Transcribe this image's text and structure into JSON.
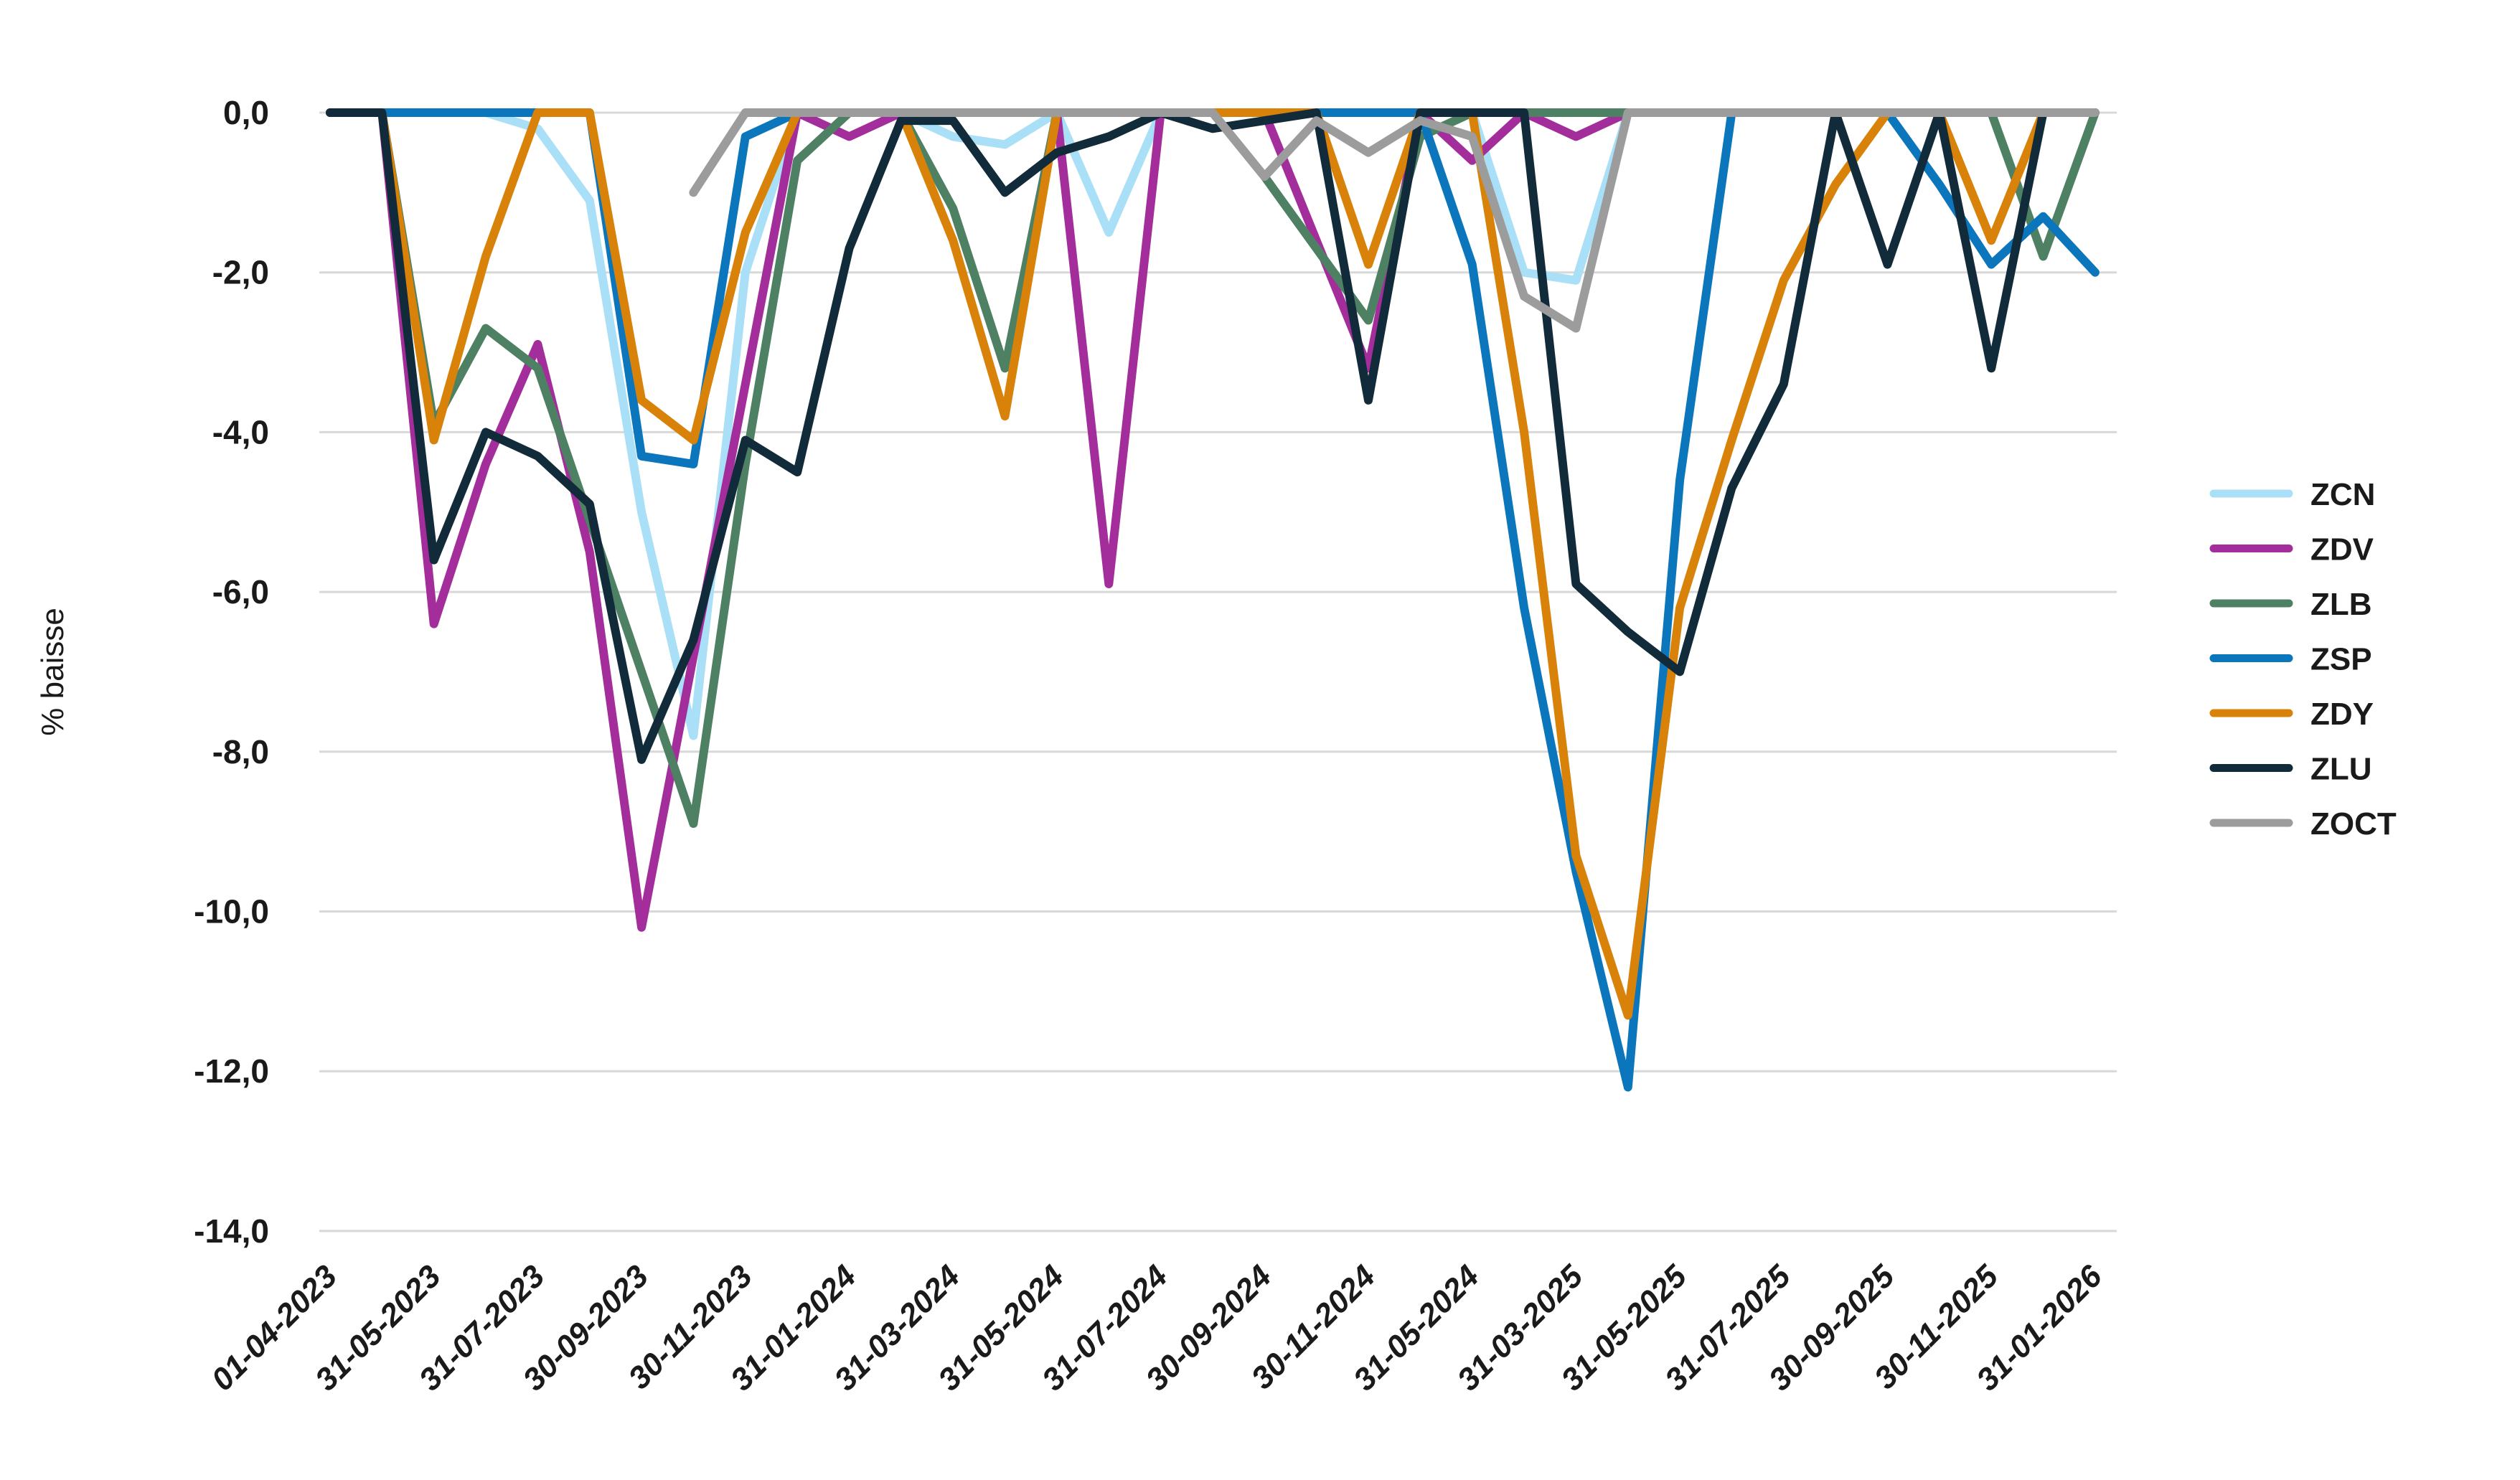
{
  "chart_data": {
    "type": "line",
    "title": "",
    "ylabel": "% baisse",
    "xlabel": "",
    "background_color": "#FFFFFF",
    "gridline_color": "#D8D8D8",
    "text_color": "#1A1A1A",
    "grid": true,
    "legend_position": "right",
    "y_axis": {
      "title": "% baisse",
      "min": -14,
      "max": 0,
      "tick_values": [
        0,
        -2,
        -4,
        -6,
        -8,
        -10,
        -12,
        -14
      ],
      "tick_labels": [
        "0,0",
        "-2,0",
        "-4,0",
        "-6,0",
        "-8,0",
        "-10,0",
        "-12,0",
        "-14,0"
      ]
    },
    "x_axis": {
      "tick_labels": [
        "01-04-2023",
        "31-05-2023",
        "31-07-2023",
        "30-09-2023",
        "30-11-2023",
        "31-01-2024",
        "31-03-2024",
        "31-05-2024",
        "31-07-2024",
        "30-09-2024",
        "30-11-2024",
        "31-05-2024",
        "31-03-2025",
        "31-05-2025",
        "31-07-2025",
        "30-09-2025",
        "30-11-2025",
        "31-01-2026"
      ],
      "points_per_label_interval": 2,
      "total_points": 35
    },
    "series": [
      {
        "name": "ZCN",
        "color": "#A9DFF7",
        "values": [
          0,
          0,
          0,
          0,
          -0.2,
          -1.1,
          -5.0,
          -7.8,
          -2.0,
          0,
          0,
          0,
          -0.3,
          -0.4,
          0,
          -1.5,
          0,
          0,
          0,
          0,
          0,
          0,
          0,
          -2.0,
          -2.1,
          0,
          0,
          0,
          0,
          0,
          0,
          0,
          0,
          0,
          0
        ]
      },
      {
        "name": "ZDV",
        "color": "#A32D9A",
        "values": [
          0,
          0,
          -6.4,
          -4.4,
          -2.9,
          -5.5,
          -10.2,
          -6.8,
          -3.4,
          0,
          -0.3,
          0,
          0,
          0,
          0,
          -5.9,
          0,
          0,
          0,
          -1.6,
          -3.2,
          0,
          -0.6,
          0,
          -0.3,
          0,
          0,
          0,
          0,
          0,
          0,
          0,
          0,
          0,
          0
        ]
      },
      {
        "name": "ZLB",
        "color": "#4E8063",
        "values": [
          0,
          0,
          -3.9,
          -2.7,
          -3.2,
          -5.1,
          -7.0,
          -8.9,
          -4.4,
          -0.6,
          0,
          0,
          -1.2,
          -3.2,
          0,
          0,
          0,
          0,
          -0.8,
          -1.7,
          -2.6,
          -0.3,
          0,
          0,
          0,
          0,
          0,
          0,
          0,
          0,
          0,
          0,
          0,
          -1.8,
          0
        ]
      },
      {
        "name": "ZSP",
        "color": "#0B76BC",
        "values": [
          0,
          0,
          0,
          0,
          0,
          0,
          -4.3,
          -4.4,
          -0.3,
          0,
          0,
          0,
          0,
          0,
          0,
          0,
          0,
          0,
          0,
          0,
          0,
          0,
          -1.9,
          -6.2,
          -9.5,
          -12.2,
          -4.6,
          0,
          0,
          0,
          0,
          -0.9,
          -1.9,
          -1.3,
          -2.0
        ]
      },
      {
        "name": "ZDY",
        "color": "#D8820A",
        "values": [
          0,
          0,
          -4.1,
          -1.8,
          0,
          0,
          -3.6,
          -4.1,
          -1.5,
          0,
          0,
          0,
          -1.6,
          -3.8,
          0,
          0,
          0,
          0,
          0,
          0,
          -1.9,
          0,
          0,
          -4.0,
          -9.3,
          -11.3,
          -6.2,
          -4.1,
          -2.1,
          -0.9,
          0,
          0,
          -1.6,
          0,
          0
        ]
      },
      {
        "name": "ZLU",
        "color": "#122B3B",
        "values": [
          0,
          0,
          -5.6,
          -4.0,
          -4.3,
          -4.9,
          -8.1,
          -6.6,
          -4.1,
          -4.5,
          -1.7,
          -0.1,
          -0.1,
          -1.0,
          -0.5,
          -0.3,
          0,
          -0.2,
          -0.1,
          0,
          -3.6,
          0,
          0,
          0,
          -5.9,
          -6.5,
          -7.0,
          -4.7,
          -3.4,
          0,
          -1.9,
          0,
          -3.2,
          0,
          0
        ]
      },
      {
        "name": "ZOCT",
        "color": "#9C9C9C",
        "values": [
          null,
          null,
          null,
          null,
          null,
          null,
          null,
          -1.0,
          0,
          0,
          0,
          0,
          0,
          0,
          0,
          0,
          0,
          0,
          -0.8,
          -0.1,
          -0.5,
          -0.1,
          -0.3,
          -2.3,
          -2.7,
          0,
          0,
          0,
          0,
          0,
          0,
          0,
          0,
          0,
          0
        ]
      }
    ],
    "legend_entries": [
      "ZCN",
      "ZDV",
      "ZLB",
      "ZSP",
      "ZDY",
      "ZLU",
      "ZOCT"
    ]
  }
}
